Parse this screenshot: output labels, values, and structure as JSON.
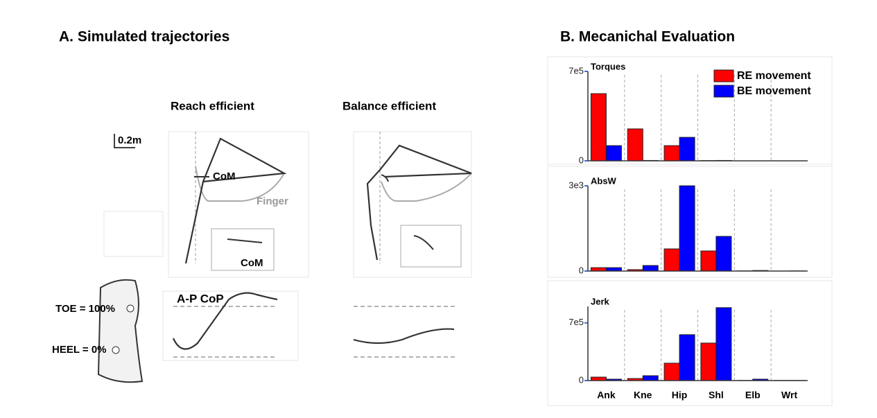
{
  "panel_a": {
    "title": "A. Simulated trajectories",
    "columns": [
      "Reach efficient",
      "Balance efficient"
    ],
    "scale_label": "0.2m",
    "labels": {
      "com_reach": "CoM",
      "finger": "Finger",
      "com_inset": "CoM",
      "cop": "A-P CoP",
      "toe": "TOE = 100%",
      "heel": "HEEL = 0%"
    }
  },
  "panel_b_title": "B. Mecanichal Evaluation",
  "chart_data": [
    {
      "type": "bar",
      "title": "Torques",
      "ylim": [
        0,
        700000
      ],
      "yticks": [
        0,
        {
          "value": 700000,
          "label": "7e5"
        }
      ],
      "legend": "upper right",
      "series": [
        {
          "name": "RE movement",
          "color": "#ff0000",
          "values": [
            526000,
            250000,
            119000,
            2000,
            0,
            0
          ]
        },
        {
          "name": "BE movement",
          "color": "#0000ff",
          "values": [
            119000,
            3000,
            184000,
            3000,
            0,
            0
          ]
        }
      ]
    },
    {
      "type": "bar",
      "title": "AbsW",
      "ylim": [
        0,
        3000
      ],
      "yticks": [
        0,
        {
          "value": 3000,
          "label": "3e3"
        }
      ],
      "series": [
        {
          "name": "RE movement",
          "color": "#ff0000",
          "values": [
            120,
            50,
            780,
            707,
            5,
            0
          ]
        },
        {
          "name": "BE movement",
          "color": "#0000ff",
          "values": [
            120,
            195,
            3000,
            1220,
            20,
            5
          ]
        }
      ]
    },
    {
      "type": "bar",
      "title": "Jerk",
      "ylim": [
        0,
        900000
      ],
      "yticks": [
        0,
        {
          "value": 700000,
          "label": "7e5"
        }
      ],
      "categories": [
        "Ank",
        "Kne",
        "Hip",
        "Shl",
        "Elb",
        "Wrt"
      ],
      "series": [
        {
          "name": "RE movement",
          "color": "#ff0000",
          "values": [
            42000,
            25000,
            211000,
            455000,
            2000,
            2000
          ]
        },
        {
          "name": "BE movement",
          "color": "#0000ff",
          "values": [
            17000,
            59000,
            557000,
            885000,
            17000,
            2000
          ]
        }
      ]
    }
  ]
}
